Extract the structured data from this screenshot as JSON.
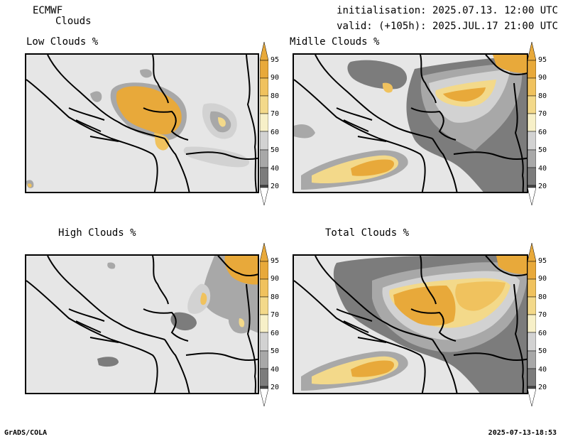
{
  "header": {
    "model": "ECMWF",
    "parameter": "Clouds",
    "initialisation": "initialisation: 2025.07.13. 12:00 UTC",
    "valid": "valid: (+105h): 2025.JUL.17 21:00 UTC"
  },
  "panels": [
    {
      "title": "Low Clouds %"
    },
    {
      "title": "Midlle Clouds %"
    },
    {
      "title": "High Clouds %"
    },
    {
      "title": "Total Clouds %"
    }
  ],
  "colorbar": {
    "labels": [
      "95",
      "90",
      "80",
      "70",
      "60",
      "50",
      "40",
      "20"
    ],
    "colors": [
      "#e8a93a",
      "#f0c25e",
      "#f3d98a",
      "#f7f0c8",
      "#d2d2d2",
      "#a8a8a8",
      "#7c7c7c",
      "#4d4d4d"
    ]
  },
  "footer": {
    "left": "GrADS/COLA",
    "right": "2025-07-13-18:53"
  }
}
